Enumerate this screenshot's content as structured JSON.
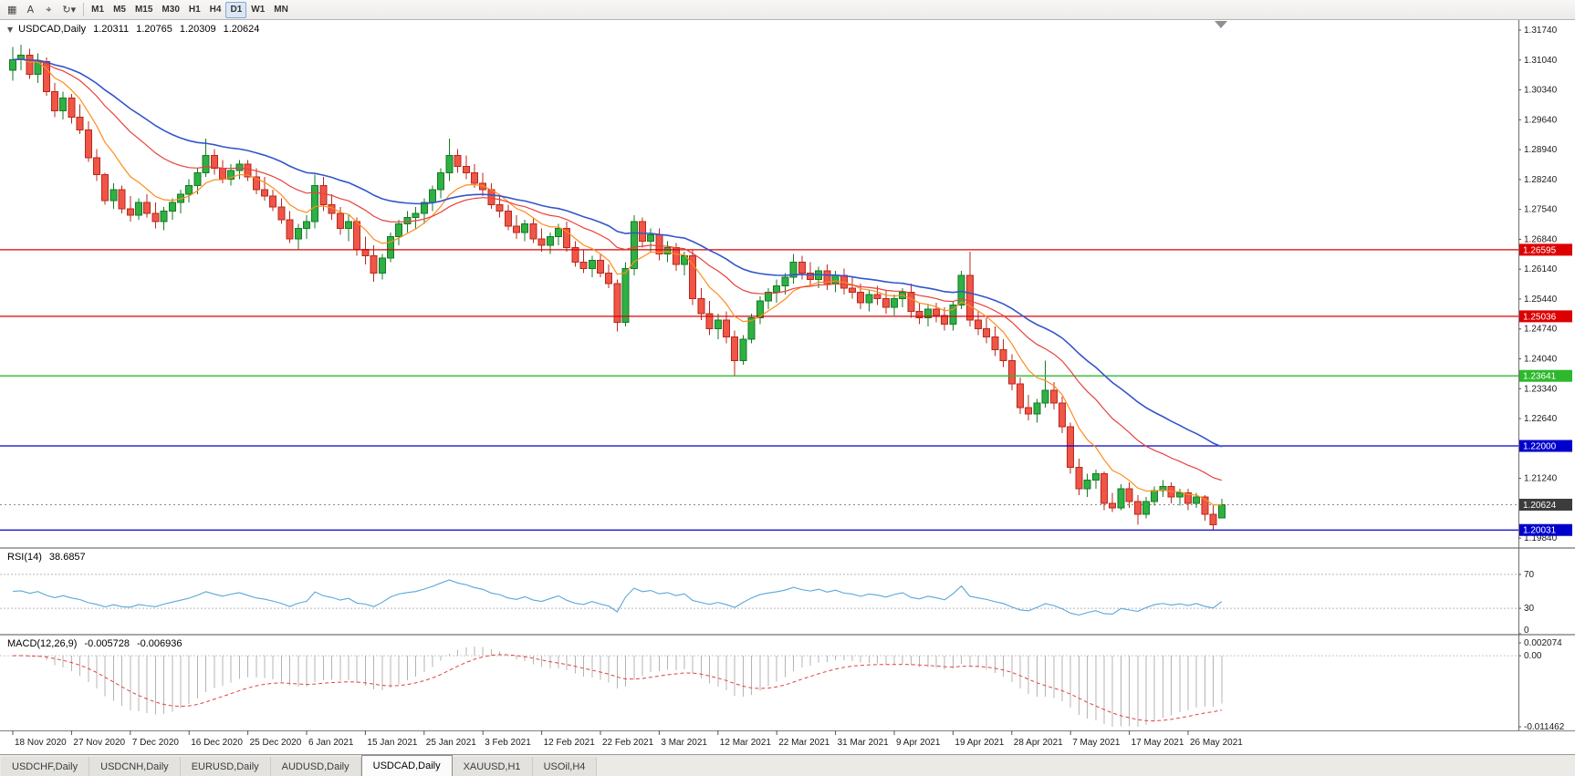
{
  "toolbar": {
    "buttons": [
      {
        "name": "charts-grid-icon",
        "glyph": "▦"
      },
      {
        "name": "text-annotation-icon",
        "glyph": "A"
      },
      {
        "name": "crosshair-icon",
        "glyph": "⌖"
      },
      {
        "name": "autoscroll-icon",
        "glyph": "↻",
        "caret": "▾"
      }
    ],
    "timeframes": [
      "M1",
      "M5",
      "M15",
      "M30",
      "H1",
      "H4",
      "D1",
      "W1",
      "MN"
    ],
    "active_timeframe": "D1"
  },
  "chart": {
    "title": "USDCAD,Daily",
    "collapse_glyph": "▼",
    "ohlc": {
      "open": "1.20311",
      "high": "1.20765",
      "low": "1.20309",
      "close": "1.20624"
    },
    "colors": {
      "bull": "#2eb043",
      "bull_border": "#157a26",
      "bear": "#ef5648",
      "bear_border": "#b8281e",
      "ma_fast": "#ff8c1a",
      "ma_medium": "#e8413c",
      "ma_slow": "#3355cc"
    },
    "hlines": [
      {
        "value": 1.26595,
        "label": "1.26595",
        "color": "#dd0000"
      },
      {
        "value": 1.25036,
        "label": "1.25036",
        "color": "#dd0000"
      },
      {
        "value": 1.23641,
        "label": "1.23641",
        "color": "#2db82d"
      },
      {
        "value": 1.22,
        "label": "1.22000",
        "color": "#0000cc"
      },
      {
        "value": 1.20031,
        "label": "1.20031",
        "color": "#0000cc"
      }
    ],
    "current_price": {
      "value": 1.20624,
      "label": "1.20624",
      "tag_color": "#3c3c3c"
    },
    "price_axis": {
      "labels": [
        "1.31740",
        "1.31040",
        "1.30340",
        "1.29640",
        "1.28940",
        "1.28240",
        "1.27540",
        "1.26840",
        "1.26140",
        "1.25440",
        "1.24740",
        "1.24040",
        "1.23340",
        "1.22640",
        "1.21940",
        "1.21240",
        "1.20540",
        "1.19840"
      ]
    },
    "date_labels": [
      "18 Nov 2020",
      "27 Nov 2020",
      "7 Dec 2020",
      "16 Dec 2020",
      "25 Dec 2020",
      "6 Jan 2021",
      "15 Jan 2021",
      "25 Jan 2021",
      "3 Feb 2021",
      "12 Feb 2021",
      "22 Feb 2021",
      "3 Mar 2021",
      "12 Mar 2021",
      "22 Mar 2021",
      "31 Mar 2021",
      "9 Apr 2021",
      "19 Apr 2021",
      "28 Apr 2021",
      "7 May 2021",
      "17 May 2021",
      "26 May 2021"
    ],
    "candles": [
      [
        1.308,
        1.3135,
        1.3055,
        1.3105
      ],
      [
        1.3105,
        1.314,
        1.308,
        1.3115
      ],
      [
        1.3115,
        1.313,
        1.306,
        1.307
      ],
      [
        1.307,
        1.312,
        1.305,
        1.31
      ],
      [
        1.31,
        1.311,
        1.302,
        1.303
      ],
      [
        1.303,
        1.305,
        1.297,
        1.2985
      ],
      [
        1.2985,
        1.303,
        1.2965,
        1.3015
      ],
      [
        1.3015,
        1.3025,
        1.2955,
        1.297
      ],
      [
        1.297,
        1.3,
        1.293,
        1.294
      ],
      [
        1.294,
        1.296,
        1.2865,
        1.2875
      ],
      [
        1.2875,
        1.2895,
        1.282,
        1.2835
      ],
      [
        1.2835,
        1.284,
        1.2765,
        1.2775
      ],
      [
        1.2775,
        1.2815,
        1.2755,
        1.28
      ],
      [
        1.28,
        1.281,
        1.2745,
        1.2755
      ],
      [
        1.2755,
        1.2785,
        1.2725,
        1.274
      ],
      [
        1.274,
        1.278,
        1.273,
        1.277
      ],
      [
        1.277,
        1.279,
        1.2735,
        1.2745
      ],
      [
        1.2745,
        1.277,
        1.271,
        1.2725
      ],
      [
        1.2725,
        1.276,
        1.2705,
        1.275
      ],
      [
        1.275,
        1.278,
        1.273,
        1.277
      ],
      [
        1.277,
        1.28,
        1.2745,
        1.279
      ],
      [
        1.279,
        1.2825,
        1.277,
        1.281
      ],
      [
        1.281,
        1.285,
        1.279,
        1.284
      ],
      [
        1.284,
        1.292,
        1.283,
        1.288
      ],
      [
        1.288,
        1.2895,
        1.2835,
        1.285
      ],
      [
        1.285,
        1.287,
        1.2815,
        1.2825
      ],
      [
        1.2825,
        1.286,
        1.281,
        1.2845
      ],
      [
        1.2845,
        1.287,
        1.2825,
        1.286
      ],
      [
        1.286,
        1.287,
        1.282,
        1.283
      ],
      [
        1.283,
        1.285,
        1.279,
        1.28
      ],
      [
        1.28,
        1.283,
        1.2775,
        1.2785
      ],
      [
        1.2785,
        1.28,
        1.275,
        1.276
      ],
      [
        1.276,
        1.278,
        1.272,
        1.273
      ],
      [
        1.273,
        1.275,
        1.2675,
        1.2685
      ],
      [
        1.2685,
        1.272,
        1.266,
        1.271
      ],
      [
        1.271,
        1.274,
        1.2685,
        1.2725
      ],
      [
        1.2725,
        1.2835,
        1.271,
        1.281
      ],
      [
        1.281,
        1.283,
        1.275,
        1.2765
      ],
      [
        1.2765,
        1.279,
        1.273,
        1.2745
      ],
      [
        1.2745,
        1.276,
        1.2695,
        1.271
      ],
      [
        1.271,
        1.274,
        1.268,
        1.2725
      ],
      [
        1.2725,
        1.2735,
        1.2645,
        1.266
      ],
      [
        1.266,
        1.269,
        1.2625,
        1.2645
      ],
      [
        1.2645,
        1.267,
        1.2585,
        1.2605
      ],
      [
        1.2605,
        1.265,
        1.259,
        1.264
      ],
      [
        1.264,
        1.27,
        1.263,
        1.269
      ],
      [
        1.269,
        1.273,
        1.267,
        1.272
      ],
      [
        1.272,
        1.275,
        1.27,
        1.2735
      ],
      [
        1.2735,
        1.276,
        1.271,
        1.2745
      ],
      [
        1.2745,
        1.278,
        1.272,
        1.277
      ],
      [
        1.277,
        1.281,
        1.275,
        1.28
      ],
      [
        1.28,
        1.285,
        1.278,
        1.284
      ],
      [
        1.284,
        1.292,
        1.282,
        1.288
      ],
      [
        1.288,
        1.2895,
        1.284,
        1.2855
      ],
      [
        1.2855,
        1.288,
        1.2825,
        1.284
      ],
      [
        1.284,
        1.286,
        1.2805,
        1.2815
      ],
      [
        1.2815,
        1.284,
        1.2785,
        1.28
      ],
      [
        1.28,
        1.2815,
        1.2755,
        1.2765
      ],
      [
        1.2765,
        1.279,
        1.2735,
        1.275
      ],
      [
        1.275,
        1.2765,
        1.2705,
        1.2715
      ],
      [
        1.2715,
        1.274,
        1.2685,
        1.27
      ],
      [
        1.27,
        1.273,
        1.268,
        1.272
      ],
      [
        1.272,
        1.2735,
        1.2675,
        1.2685
      ],
      [
        1.2685,
        1.271,
        1.2655,
        1.267
      ],
      [
        1.267,
        1.27,
        1.265,
        1.269
      ],
      [
        1.269,
        1.272,
        1.267,
        1.271
      ],
      [
        1.271,
        1.2725,
        1.2655,
        1.2665
      ],
      [
        1.2665,
        1.268,
        1.262,
        1.263
      ],
      [
        1.263,
        1.266,
        1.2605,
        1.2615
      ],
      [
        1.2615,
        1.2645,
        1.2595,
        1.2635
      ],
      [
        1.2635,
        1.265,
        1.2595,
        1.2605
      ],
      [
        1.2605,
        1.2625,
        1.257,
        1.258
      ],
      [
        1.258,
        1.259,
        1.2468,
        1.249
      ],
      [
        1.249,
        1.263,
        1.248,
        1.2615
      ],
      [
        1.2615,
        1.274,
        1.26,
        1.2725
      ],
      [
        1.2725,
        1.2735,
        1.2665,
        1.268
      ],
      [
        1.268,
        1.271,
        1.2655,
        1.2695
      ],
      [
        1.2695,
        1.271,
        1.2635,
        1.265
      ],
      [
        1.265,
        1.268,
        1.263,
        1.2665
      ],
      [
        1.2665,
        1.2675,
        1.261,
        1.2625
      ],
      [
        1.2625,
        1.2655,
        1.26,
        1.2645
      ],
      [
        1.2645,
        1.266,
        1.253,
        1.2545
      ],
      [
        1.2545,
        1.257,
        1.2495,
        1.251
      ],
      [
        1.251,
        1.254,
        1.246,
        1.2475
      ],
      [
        1.2475,
        1.251,
        1.245,
        1.2495
      ],
      [
        1.2495,
        1.2515,
        1.244,
        1.2455
      ],
      [
        1.2455,
        1.247,
        1.2365,
        1.24
      ],
      [
        1.24,
        1.246,
        1.239,
        1.245
      ],
      [
        1.245,
        1.251,
        1.244,
        1.25
      ],
      [
        1.25,
        1.255,
        1.2485,
        1.254
      ],
      [
        1.254,
        1.257,
        1.252,
        1.256
      ],
      [
        1.256,
        1.259,
        1.2535,
        1.2575
      ],
      [
        1.2575,
        1.2605,
        1.2555,
        1.2595
      ],
      [
        1.2595,
        1.265,
        1.258,
        1.263
      ],
      [
        1.263,
        1.2645,
        1.259,
        1.2605
      ],
      [
        1.2605,
        1.263,
        1.2575,
        1.259
      ],
      [
        1.259,
        1.262,
        1.257,
        1.261
      ],
      [
        1.261,
        1.2625,
        1.2565,
        1.258
      ],
      [
        1.258,
        1.261,
        1.256,
        1.26
      ],
      [
        1.26,
        1.2615,
        1.2555,
        1.257
      ],
      [
        1.257,
        1.2595,
        1.2545,
        1.256
      ],
      [
        1.256,
        1.258,
        1.252,
        1.2535
      ],
      [
        1.2535,
        1.2565,
        1.2515,
        1.2555
      ],
      [
        1.2555,
        1.2575,
        1.253,
        1.2545
      ],
      [
        1.2545,
        1.2565,
        1.251,
        1.2525
      ],
      [
        1.2525,
        1.2555,
        1.2505,
        1.2545
      ],
      [
        1.2545,
        1.257,
        1.2525,
        1.256
      ],
      [
        1.256,
        1.258,
        1.25,
        1.2515
      ],
      [
        1.2515,
        1.2535,
        1.2485,
        1.25
      ],
      [
        1.25,
        1.253,
        1.248,
        1.252
      ],
      [
        1.252,
        1.2535,
        1.249,
        1.2505
      ],
      [
        1.2505,
        1.2525,
        1.247,
        1.2485
      ],
      [
        1.2485,
        1.254,
        1.247,
        1.253
      ],
      [
        1.253,
        1.261,
        1.252,
        1.26
      ],
      [
        1.26,
        1.2655,
        1.248,
        1.2495
      ],
      [
        1.2495,
        1.2515,
        1.246,
        1.2475
      ],
      [
        1.2475,
        1.25,
        1.244,
        1.2455
      ],
      [
        1.2455,
        1.248,
        1.241,
        1.2425
      ],
      [
        1.2425,
        1.245,
        1.2385,
        1.24
      ],
      [
        1.24,
        1.2415,
        1.233,
        1.2345
      ],
      [
        1.2345,
        1.236,
        1.2275,
        1.229
      ],
      [
        1.229,
        1.232,
        1.226,
        1.2275
      ],
      [
        1.2275,
        1.231,
        1.2255,
        1.23
      ],
      [
        1.23,
        1.24,
        1.229,
        1.233
      ],
      [
        1.233,
        1.235,
        1.2285,
        1.23
      ],
      [
        1.23,
        1.2315,
        1.223,
        1.2245
      ],
      [
        1.2245,
        1.2255,
        1.2135,
        1.215
      ],
      [
        1.215,
        1.217,
        1.2085,
        1.21
      ],
      [
        1.21,
        1.2135,
        1.208,
        1.212
      ],
      [
        1.212,
        1.2145,
        1.21,
        1.2135
      ],
      [
        1.2135,
        1.214,
        1.205,
        1.2065
      ],
      [
        1.2065,
        1.209,
        1.2045,
        1.2055
      ],
      [
        1.2055,
        1.211,
        1.205,
        1.21
      ],
      [
        1.21,
        1.2115,
        1.2055,
        1.207
      ],
      [
        1.207,
        1.2085,
        1.2015,
        1.204
      ],
      [
        1.204,
        1.208,
        1.203,
        1.207
      ],
      [
        1.207,
        1.2105,
        1.206,
        1.2095
      ],
      [
        1.2095,
        1.212,
        1.208,
        1.2105
      ],
      [
        1.2105,
        1.2115,
        1.2065,
        1.208
      ],
      [
        1.208,
        1.21,
        1.206,
        1.209
      ],
      [
        1.209,
        1.21,
        1.205,
        1.2065
      ],
      [
        1.2065,
        1.209,
        1.2055,
        1.208
      ],
      [
        1.208,
        1.2085,
        1.2025,
        1.204
      ],
      [
        1.204,
        1.206,
        1.2003,
        1.2015
      ],
      [
        1.20311,
        1.20765,
        1.20309,
        1.20624
      ]
    ]
  },
  "rsi": {
    "label": "RSI(14)",
    "value_text": "38.6857",
    "color": "#5aa7d8",
    "levels": [
      70,
      30
    ],
    "axis_labels": [
      "70",
      "30",
      "0"
    ]
  },
  "macd": {
    "label": "MACD(12,26,9)",
    "main_value": "-0.005728",
    "signal_value": "-0.006936",
    "range": [
      0.002074,
      -0.011462
    ],
    "axis_labels": [
      "0.002074",
      "0.00",
      "-0.011462"
    ]
  },
  "tabs": [
    {
      "label": "USDCHF,Daily",
      "active": false
    },
    {
      "label": "USDCNH,Daily",
      "active": false
    },
    {
      "label": "EURUSD,Daily",
      "active": false
    },
    {
      "label": "AUDUSD,Daily",
      "active": false
    },
    {
      "label": "USDCAD,Daily",
      "active": true
    },
    {
      "label": "XAUUSD,H1",
      "active": false
    },
    {
      "label": "USOil,H4",
      "active": false
    }
  ]
}
